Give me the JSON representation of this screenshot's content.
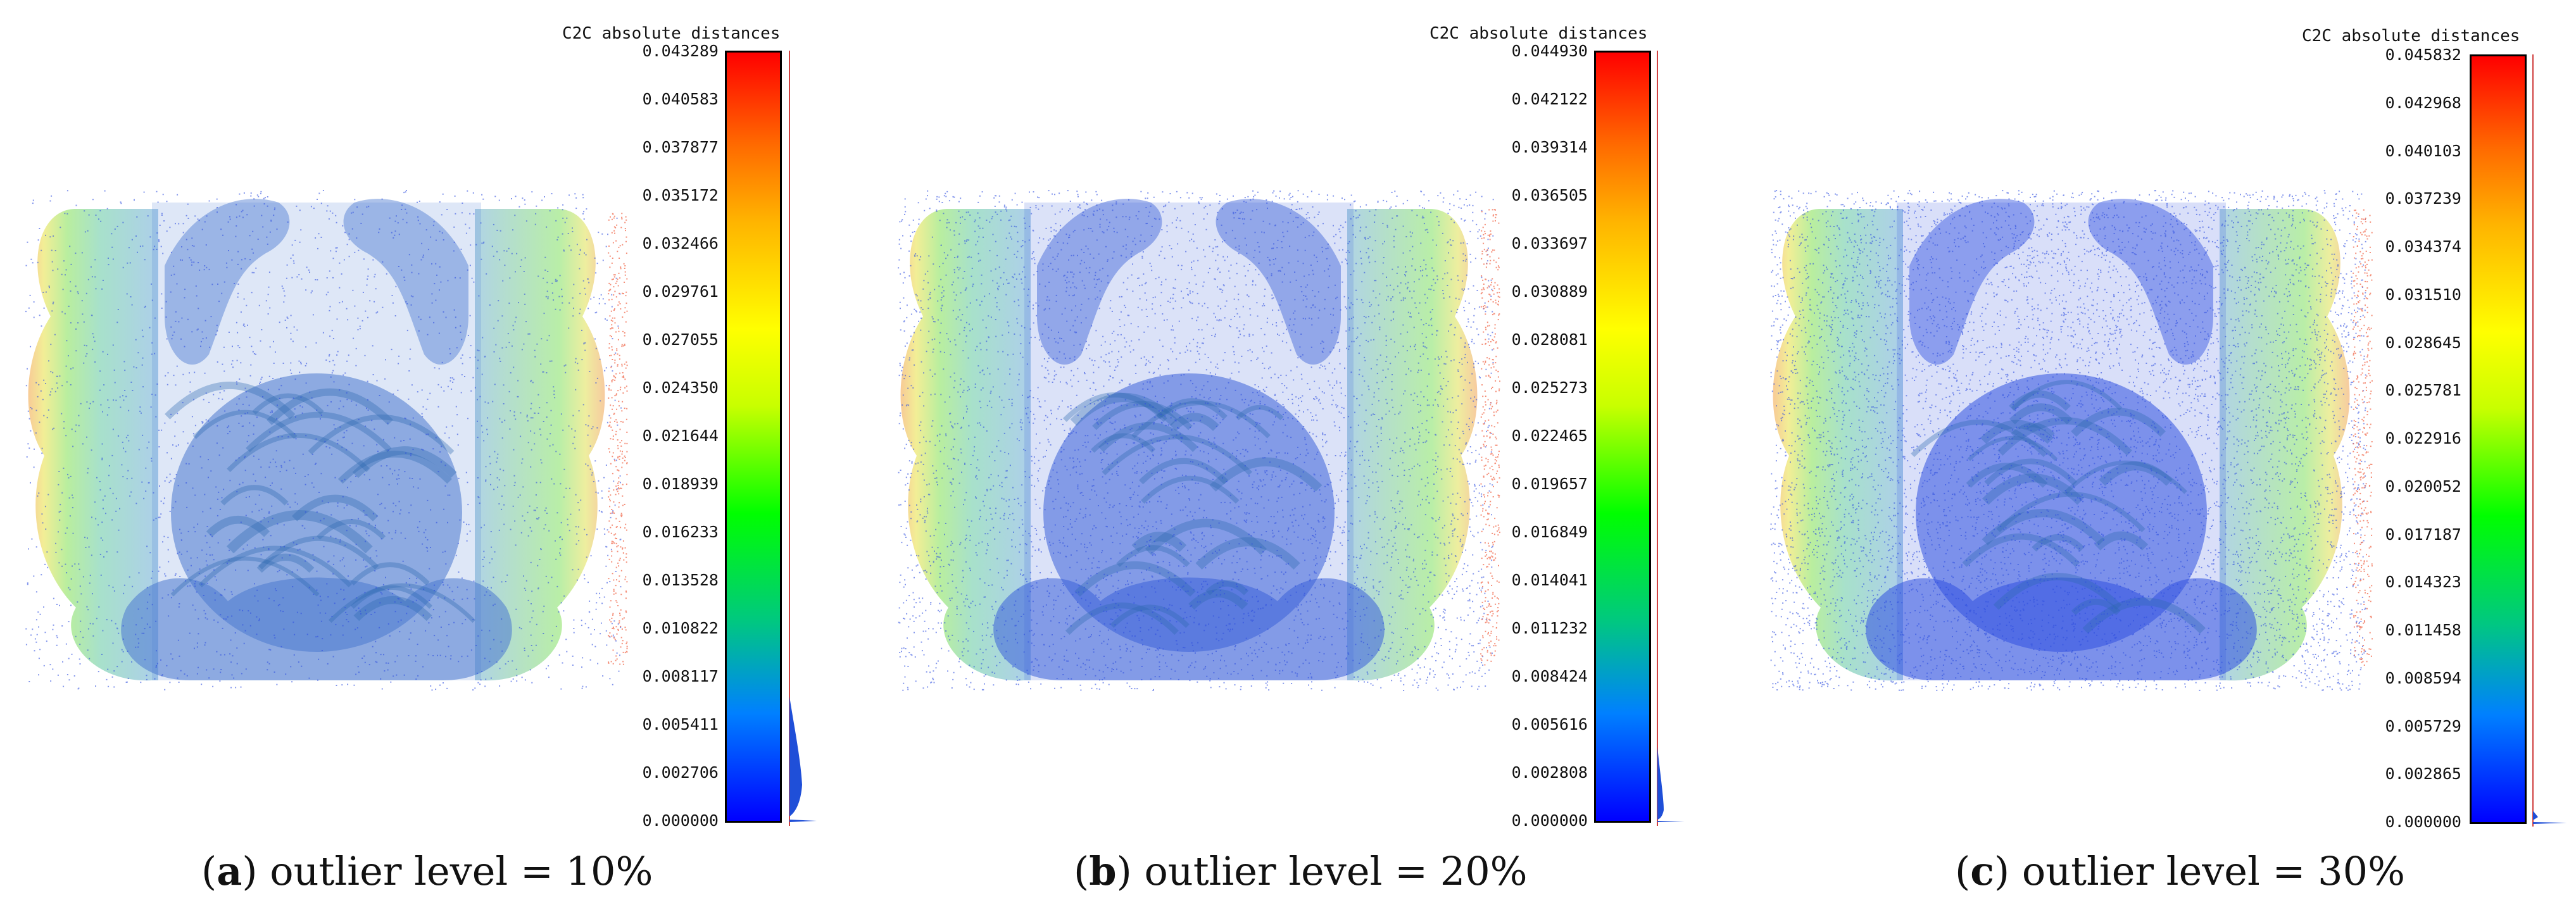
{
  "panels": [
    {
      "colorbar_title": "C2C absolute distances",
      "ticks": [
        "0.043289",
        "0.040583",
        "0.037877",
        "0.035172",
        "0.032466",
        "0.029761",
        "0.027055",
        "0.024350",
        "0.021644",
        "0.018939",
        "0.016233",
        "0.013528",
        "0.010822",
        "0.008117",
        "0.005411",
        "0.002706",
        "0.000000"
      ],
      "caption_label": "a",
      "caption_text": "outlier level = 10%"
    },
    {
      "colorbar_title": "C2C absolute distances",
      "ticks": [
        "0.044930",
        "0.042122",
        "0.039314",
        "0.036505",
        "0.033697",
        "0.030889",
        "0.028081",
        "0.025273",
        "0.022465",
        "0.019657",
        "0.016849",
        "0.014041",
        "0.011232",
        "0.008424",
        "0.005616",
        "0.002808",
        "0.000000"
      ],
      "caption_label": "b",
      "caption_text": "outlier level = 20%"
    },
    {
      "colorbar_title": "C2C absolute distances",
      "ticks": [
        "0.045832",
        "0.042968",
        "0.040103",
        "0.037239",
        "0.034374",
        "0.031510",
        "0.028645",
        "0.025781",
        "0.022916",
        "0.020052",
        "0.017187",
        "0.014323",
        "0.011458",
        "0.008594",
        "0.005729",
        "0.002865",
        "0.000000"
      ],
      "caption_label": "c",
      "caption_text": "outlier level = 30%"
    }
  ],
  "colors": {
    "scale_top": "#ff0000",
    "scale_mid": "#ffff00",
    "scale_green": "#00ff00",
    "scale_bottom": "#0000ff",
    "histogram": "#1f4fd8"
  }
}
